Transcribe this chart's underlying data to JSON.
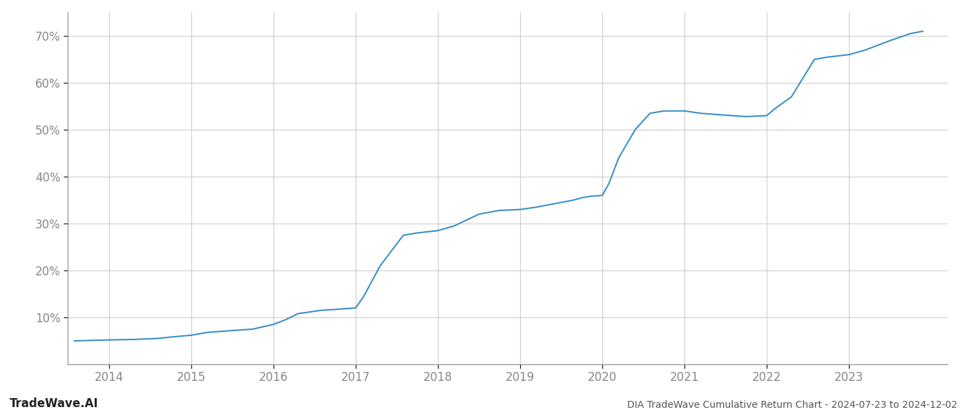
{
  "title": "DIA TradeWave Cumulative Return Chart - 2024-07-23 to 2024-12-02",
  "watermark": "TradeWave.AI",
  "line_color": "#3a8fc7",
  "line_width": 1.5,
  "background_color": "#ffffff",
  "grid_color": "#cccccc",
  "x_years": [
    2013.58,
    2014.0,
    2014.3,
    2014.58,
    2014.75,
    2015.0,
    2015.2,
    2015.5,
    2015.75,
    2016.0,
    2016.15,
    2016.3,
    2016.58,
    2016.75,
    2017.0,
    2017.1,
    2017.3,
    2017.58,
    2017.75,
    2018.0,
    2018.2,
    2018.5,
    2018.75,
    2019.0,
    2019.2,
    2019.5,
    2019.65,
    2019.75,
    2019.85,
    2020.0,
    2020.08,
    2020.2,
    2020.4,
    2020.58,
    2020.75,
    2021.0,
    2021.2,
    2021.58,
    2021.75,
    2022.0,
    2022.1,
    2022.3,
    2022.58,
    2022.75,
    2023.0,
    2023.2,
    2023.5,
    2023.75,
    2023.9
  ],
  "y_values": [
    5.0,
    5.2,
    5.3,
    5.5,
    5.8,
    6.2,
    6.8,
    7.2,
    7.5,
    8.5,
    9.5,
    10.8,
    11.5,
    11.7,
    12.0,
    14.5,
    21.0,
    27.5,
    28.0,
    28.5,
    29.5,
    32.0,
    32.8,
    33.0,
    33.5,
    34.5,
    35.0,
    35.5,
    35.8,
    36.0,
    38.5,
    44.0,
    50.0,
    53.5,
    54.0,
    54.0,
    53.5,
    53.0,
    52.8,
    53.0,
    54.5,
    57.0,
    65.0,
    65.5,
    66.0,
    67.0,
    69.0,
    70.5,
    71.0
  ],
  "xlim": [
    2013.5,
    2024.2
  ],
  "ylim": [
    0,
    75
  ],
  "yticks": [
    10,
    20,
    30,
    40,
    50,
    60,
    70
  ],
  "xticks": [
    2014,
    2015,
    2016,
    2017,
    2018,
    2019,
    2020,
    2021,
    2022,
    2023
  ],
  "tick_fontsize": 12,
  "title_fontsize": 10,
  "watermark_fontsize": 12
}
